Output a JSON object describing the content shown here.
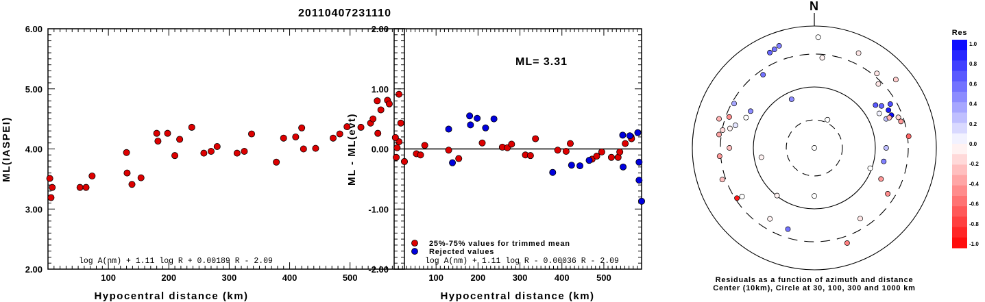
{
  "title": "20110407231110",
  "chart_data": [
    {
      "type": "scatter",
      "xlabel": "Hypocentral distance (km)",
      "ylabel": "ML(IASPEI)",
      "xlim": [
        0,
        590
      ],
      "ylim": [
        2.0,
        6.0
      ],
      "x_ticks": [
        "100",
        "200",
        "300",
        "400",
        "500"
      ],
      "y_ticks": [
        "2.00",
        "3.00",
        "4.00",
        "5.00",
        "6.00"
      ],
      "formula": "log A(nm) + 1.11 log R + 0.00189 R - 2.09",
      "series": [
        {
          "color": "#dd0000",
          "points": [
            [
              3,
              3.51
            ],
            [
              5,
              3.19
            ],
            [
              7,
              3.36
            ],
            [
              53,
              3.36
            ],
            [
              63,
              3.36
            ],
            [
              73,
              3.55
            ],
            [
              130,
              3.94
            ],
            [
              131,
              3.6
            ],
            [
              139,
              3.41
            ],
            [
              154,
              3.52
            ],
            [
              180,
              4.26
            ],
            [
              182,
              4.13
            ],
            [
              198,
              4.26
            ],
            [
              210,
              3.89
            ],
            [
              218,
              4.16
            ],
            [
              238,
              4.36
            ],
            [
              258,
              3.93
            ],
            [
              270,
              3.96
            ],
            [
              280,
              4.04
            ],
            [
              313,
              3.93
            ],
            [
              325,
              3.96
            ],
            [
              337,
              4.25
            ],
            [
              378,
              3.78
            ],
            [
              390,
              4.18
            ],
            [
              410,
              4.2
            ],
            [
              420,
              4.35
            ],
            [
              423,
              4.0
            ],
            [
              443,
              4.01
            ],
            [
              472,
              4.18
            ],
            [
              483,
              4.25
            ],
            [
              495,
              4.37
            ],
            [
              518,
              4.36
            ],
            [
              534,
              4.43
            ],
            [
              538,
              4.5
            ],
            [
              545,
              4.8
            ],
            [
              546,
              4.26
            ],
            [
              551,
              4.65
            ],
            [
              562,
              4.81
            ],
            [
              565,
              4.75
            ],
            [
              581,
              4.91
            ],
            [
              581,
              4.12
            ],
            [
              584,
              4.43
            ],
            [
              590,
              3.79
            ]
          ]
        }
      ]
    },
    {
      "type": "scatter",
      "xlabel": "Hypocentral distance (km)",
      "ylabel": "ML - ML(evt)",
      "xlim": [
        0,
        590
      ],
      "ylim": [
        -2.0,
        2.0
      ],
      "x_ticks": [
        "100",
        "200",
        "300",
        "400",
        "500"
      ],
      "y_ticks": [
        "-2.00",
        "-1.00",
        "0.00",
        "1.00",
        "2.00"
      ],
      "annotation": "ML= 3.31",
      "formula": "log A(nm) + 1.11 log R - 0.00036 R - 2.09",
      "series": [
        {
          "name": "25%-75% values for trimmed mean",
          "color": "#dd0000",
          "points": [
            [
              3,
              0.19
            ],
            [
              5,
              -0.14
            ],
            [
              7,
              0.02
            ],
            [
              53,
              -0.08
            ],
            [
              63,
              -0.1
            ],
            [
              73,
              0.06
            ],
            [
              130,
              -0.02
            ],
            [
              154,
              -0.16
            ],
            [
              210,
              0.1
            ],
            [
              258,
              0.03
            ],
            [
              270,
              0.02
            ],
            [
              280,
              0.08
            ],
            [
              313,
              -0.1
            ],
            [
              325,
              -0.11
            ],
            [
              337,
              0.17
            ],
            [
              390,
              -0.02
            ],
            [
              410,
              -0.04
            ],
            [
              420,
              0.09
            ],
            [
              472,
              -0.17
            ],
            [
              483,
              -0.12
            ],
            [
              495,
              -0.05
            ],
            [
              518,
              -0.14
            ],
            [
              534,
              -0.14
            ],
            [
              538,
              -0.05
            ],
            [
              551,
              0.09
            ],
            [
              565,
              0.2
            ],
            [
              566,
              0.17
            ]
          ]
        },
        {
          "name": "Rejected values",
          "color": "#0000dd",
          "points": [
            [
              130,
              0.33
            ],
            [
              139,
              -0.23
            ],
            [
              180,
              0.55
            ],
            [
              182,
              0.4
            ],
            [
              198,
              0.51
            ],
            [
              218,
              0.35
            ],
            [
              238,
              0.5
            ],
            [
              378,
              -0.39
            ],
            [
              423,
              -0.27
            ],
            [
              443,
              -0.28
            ],
            [
              465,
              -0.19
            ],
            [
              545,
              0.23
            ],
            [
              546,
              -0.3
            ],
            [
              562,
              0.22
            ],
            [
              581,
              0.27
            ],
            [
              584,
              -0.22
            ],
            [
              584,
              -0.52
            ],
            [
              590,
              -0.87
            ]
          ]
        }
      ]
    },
    {
      "type": "polar-scatter",
      "north_label": "N",
      "caption_line1": "Residuals as a function of azimuth and distance",
      "caption_line2": "Center (10km), Circle at 30, 100, 300 and 1000 km",
      "colorbar": {
        "title": "Res",
        "ticks": [
          "1.0",
          "0.8",
          "0.6",
          "0.4",
          "0.2",
          "0.0",
          "-0.2",
          "-0.4",
          "-0.6",
          "-0.8",
          "-1.0"
        ],
        "positive_color": "#0000ff",
        "negative_color": "#ff0000"
      },
      "points": [
        {
          "az": 0,
          "r": 0.0,
          "res": 0.0
        },
        {
          "az": 90,
          "r": 1.27,
          "res": 0.25
        },
        {
          "az": 115,
          "r": 1.3,
          "res": -0.4
        },
        {
          "az": 180,
          "r": 0.85,
          "res": 0.0
        },
        {
          "az": 25,
          "r": 0.55,
          "res": 0.0
        },
        {
          "az": 260,
          "r": 0.95,
          "res": -0.05
        },
        {
          "az": 335,
          "r": 0.95,
          "res": 0.45
        },
        {
          "az": 300,
          "r": 1.3,
          "res": 0.45
        },
        {
          "az": 325,
          "r": 1.58,
          "res": 0.55
        },
        {
          "az": 335,
          "r": 1.86,
          "res": 0.6
        },
        {
          "az": 338,
          "r": 1.88,
          "res": 0.55
        },
        {
          "az": 341,
          "r": 1.91,
          "res": 0.5
        },
        {
          "az": 2,
          "r": 1.96,
          "res": 0.0
        },
        {
          "az": 5,
          "r": 1.6,
          "res": -0.05
        },
        {
          "az": 25,
          "r": 1.85,
          "res": -0.1
        },
        {
          "az": 40,
          "r": 1.72,
          "res": -0.1
        },
        {
          "az": 45,
          "r": 1.6,
          "res": -0.1
        },
        {
          "az": 50,
          "r": 1.88,
          "res": -0.2
        },
        {
          "az": 55,
          "r": 1.32,
          "res": 0.65
        },
        {
          "az": 58,
          "r": 1.4,
          "res": 0.6
        },
        {
          "az": 62,
          "r": 1.3,
          "res": 0.05
        },
        {
          "az": 60,
          "r": 1.55,
          "res": 0.7
        },
        {
          "az": 63,
          "r": 1.47,
          "res": 0.9
        },
        {
          "az": 67,
          "r": 1.48,
          "res": 0.95
        },
        {
          "az": 68,
          "r": 1.37,
          "res": 0.25
        },
        {
          "az": 68,
          "r": 1.43,
          "res": -0.3
        },
        {
          "az": 70,
          "r": 1.58,
          "res": -0.15
        },
        {
          "az": 73,
          "r": 1.6,
          "res": -0.4
        },
        {
          "az": 83,
          "r": 1.68,
          "res": -0.6
        },
        {
          "az": 101,
          "r": 1.25,
          "res": 0.5
        },
        {
          "az": 110,
          "r": 1.05,
          "res": 0.0
        },
        {
          "az": 122,
          "r": 1.53,
          "res": -0.45
        },
        {
          "az": 147,
          "r": 1.49,
          "res": -0.1
        },
        {
          "az": 161,
          "r": 1.78,
          "res": -0.5
        },
        {
          "az": 198,
          "r": 1.51,
          "res": 0.55
        },
        {
          "az": 212,
          "r": 1.48,
          "res": -0.05
        },
        {
          "az": 218,
          "r": 1.07,
          "res": -0.05
        },
        {
          "az": 236,
          "r": 1.54,
          "res": 0.0
        },
        {
          "az": 237,
          "r": 1.63,
          "res": -0.9
        },
        {
          "az": 251,
          "r": 1.72,
          "res": -0.25
        },
        {
          "az": 265,
          "r": 1.68,
          "res": -0.4
        },
        {
          "az": 270,
          "r": 1.5,
          "res": -0.25
        },
        {
          "az": 278,
          "r": 1.7,
          "res": -0.35
        },
        {
          "az": 287,
          "r": 1.76,
          "res": -0.3
        },
        {
          "az": 281,
          "r": 1.65,
          "res": -0.15
        },
        {
          "az": 283,
          "r": 1.53,
          "res": -0.05
        },
        {
          "az": 286,
          "r": 1.45,
          "res": 0.1
        },
        {
          "az": 290,
          "r": 1.6,
          "res": -0.45
        },
        {
          "az": 294,
          "r": 1.32,
          "res": 0.0
        },
        {
          "az": 299,
          "r": 1.62,
          "res": 0.35
        }
      ]
    }
  ]
}
